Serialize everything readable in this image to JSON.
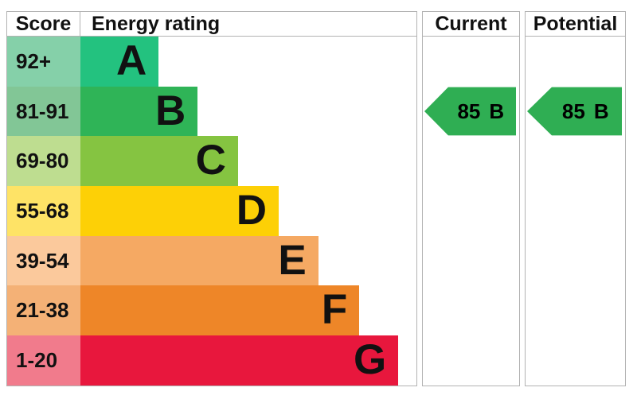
{
  "headers": {
    "score": "Score",
    "energy_rating": "Energy rating",
    "current": "Current",
    "potential": "Potential"
  },
  "chart_data": {
    "type": "bar",
    "title": "EPC energy efficiency rating chart",
    "categories": [
      "A",
      "B",
      "C",
      "D",
      "E",
      "F",
      "G"
    ],
    "bands": [
      {
        "letter": "A",
        "range": "92+",
        "width_pct": 23.3,
        "bar_color": "#23c27f",
        "cell_color": "#85d0a9"
      },
      {
        "letter": "B",
        "range": "81-91",
        "width_pct": 34.9,
        "bar_color": "#2fb457",
        "cell_color": "#82c696"
      },
      {
        "letter": "C",
        "range": "69-80",
        "width_pct": 46.9,
        "bar_color": "#85c441",
        "cell_color": "#bedd90"
      },
      {
        "letter": "D",
        "range": "55-68",
        "width_pct": 59.0,
        "bar_color": "#fdd006",
        "cell_color": "#fee366"
      },
      {
        "letter": "E",
        "range": "39-54",
        "width_pct": 70.8,
        "bar_color": "#f5a963",
        "cell_color": "#fbc99c"
      },
      {
        "letter": "F",
        "range": "21-38",
        "width_pct": 83.0,
        "bar_color": "#ee8628",
        "cell_color": "#f4b176"
      },
      {
        "letter": "G",
        "range": "1-20",
        "width_pct": 94.6,
        "bar_color": "#e8173d",
        "cell_color": "#f17b8c"
      }
    ],
    "current": {
      "score": "85",
      "band": "B",
      "row_index": 1,
      "color": "#2fae53"
    },
    "potential": {
      "score": "85",
      "band": "B",
      "row_index": 1,
      "color": "#2fae53"
    }
  }
}
